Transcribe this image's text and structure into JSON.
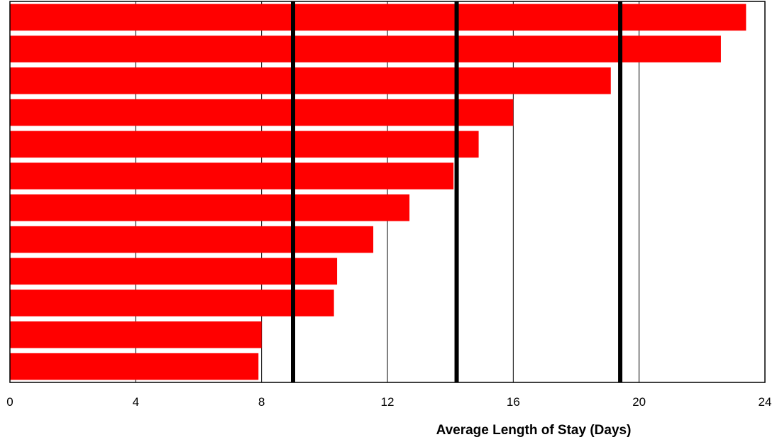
{
  "chart_data": {
    "type": "bar",
    "orientation": "horizontal",
    "values": [
      23.4,
      22.6,
      19.1,
      16.0,
      14.9,
      14.1,
      12.7,
      11.55,
      10.4,
      10.3,
      8.0,
      7.9
    ],
    "reference_lines": [
      9.0,
      14.2,
      19.4
    ],
    "xlabel": "Average Length of Stay (Days)",
    "ylabel": "",
    "title": "",
    "xlim": [
      0,
      24
    ],
    "xticks": [
      "0",
      "4",
      "8",
      "12",
      "16",
      "20",
      "24"
    ],
    "grid": "vertical",
    "legend": "none",
    "colors": {
      "bar": "#ff0000",
      "reference_line": "#000000",
      "grid": "#000000",
      "frame": "#000000"
    }
  }
}
